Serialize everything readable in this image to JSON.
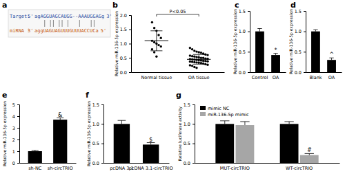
{
  "alignment": {
    "title": "a",
    "rows": [
      {
        "label": "Target:",
        "start": "5'",
        "sequence": "agAGGUAGCAUGG--AAAUGGAGg",
        "end": "3'"
      },
      {
        "label": "miRNA :",
        "start": "3'",
        "sequence": "aggUAGUAGUUUGUUUACCUCa",
        "end": "5'"
      }
    ]
  },
  "chart_data": [
    {
      "type": "strip",
      "title": "b",
      "y_label": "Relative miR-136-5p expression",
      "categories": [
        "Normal tissue",
        "OA tissue"
      ],
      "values": [
        [
          1.75,
          1.55,
          1.45,
          1.3,
          1.2,
          1.1,
          1.05,
          1.0,
          0.95,
          0.9,
          0.8,
          0.7,
          0.55
        ],
        [
          0.85,
          0.8,
          0.75,
          0.72,
          0.7,
          0.68,
          0.65,
          0.62,
          0.6,
          0.58,
          0.56,
          0.55,
          0.53,
          0.52,
          0.5,
          0.5,
          0.48,
          0.47,
          0.46,
          0.45,
          0.44,
          0.43,
          0.42,
          0.41,
          0.4,
          0.39,
          0.38,
          0.37,
          0.36,
          0.35,
          0.34,
          0.33,
          0.32,
          0.3,
          0.28,
          0.26,
          0.24,
          0.22,
          0.18,
          0.15
        ]
      ],
      "mean": [
        1.1,
        0.45
      ],
      "sd": [
        0.35,
        0.17
      ],
      "color": "#000000",
      "ylim": [
        0,
        2
      ],
      "yticks": [
        {
          "value": 0,
          "label": "0.0"
        },
        0.5,
        {
          "value": 1,
          "label": "1.0"
        },
        1.5,
        {
          "value": 2,
          "label": "2.0"
        }
      ],
      "annotations": [
        {
          "text": "P<0.05"
        }
      ]
    },
    {
      "type": "bar",
      "title": "c",
      "y_label": "Relative miR-136-5p expression",
      "categories": [
        "Control",
        "OA"
      ],
      "values": [
        1.0,
        0.42
      ],
      "errors": [
        0.07,
        0.04
      ],
      "color": "#000000",
      "ylim": [
        0,
        1.5
      ],
      "yticks": [
        {
          "value": 0,
          "label": "0.0"
        },
        0.5,
        {
          "value": 1,
          "label": "1.0"
        },
        1.5
      ],
      "annotations": [
        {
          "text": "*",
          "category": "OA"
        }
      ]
    },
    {
      "type": "bar",
      "title": "d",
      "y_label": "Relative miR-136-5p expression",
      "categories": [
        "Blank",
        "OA"
      ],
      "values": [
        1.0,
        0.3
      ],
      "errors": [
        0.04,
        0.05
      ],
      "color": "#000000",
      "ylim": [
        0,
        1.5
      ],
      "yticks": [
        {
          "value": 0,
          "label": "0.0"
        },
        0.5,
        {
          "value": 1,
          "label": "1.0"
        },
        1.5
      ],
      "annotations": [
        {
          "text": "^",
          "category": "OA"
        }
      ]
    },
    {
      "type": "bar",
      "title": "e",
      "y_label": "Relative miR-136-5p expression",
      "categories": [
        "sh-NC",
        "sh-circTRIO"
      ],
      "values": [
        1.0,
        3.7
      ],
      "errors": [
        0.08,
        0.15
      ],
      "color": "#000000",
      "ylim": [
        0,
        5
      ],
      "yticks": [
        0,
        1,
        2,
        3,
        4,
        5
      ],
      "annotations": [
        {
          "text": "&",
          "category": "sh-circTRIO"
        }
      ]
    },
    {
      "type": "bar",
      "title": "f",
      "y_label": "Relative miR-136-5p expression",
      "categories": [
        "pcDNA 3.1",
        "pcDNA 3.1-circTRIO"
      ],
      "values": [
        1.0,
        0.47
      ],
      "errors": [
        0.09,
        0.05
      ],
      "color": "#000000",
      "ylim": [
        0,
        1.5
      ],
      "yticks": [
        {
          "value": 0,
          "label": "0.0"
        },
        0.5,
        {
          "value": 1,
          "label": "1.0"
        },
        1.5
      ],
      "annotations": [
        {
          "text": "$",
          "category": "pcDNA 3.1-circTRIO"
        }
      ]
    },
    {
      "type": "bar",
      "title": "g",
      "y_label": "Relative luciferase activity",
      "categories": [
        "MUT-circTRIO",
        "WT-circTRIO"
      ],
      "series": [
        {
          "name": "mimic NC",
          "color": "#000000",
          "values": [
            1.0,
            1.0
          ],
          "errors": [
            0.08,
            0.06
          ]
        },
        {
          "name": "miR-136-5p mimic",
          "color": "#a6a6a6",
          "values": [
            0.97,
            0.2
          ],
          "errors": [
            0.09,
            0.04
          ]
        }
      ],
      "legend": "top-left",
      "ylim": [
        0,
        1.5
      ],
      "yticks": [
        {
          "value": 0,
          "label": "0.0"
        },
        0.5,
        {
          "value": 1,
          "label": "1.0"
        },
        1.5
      ],
      "annotations": [
        {
          "text": "#",
          "category": "WT-circTRIO",
          "series": "miR-136-5p mimic"
        }
      ]
    }
  ]
}
